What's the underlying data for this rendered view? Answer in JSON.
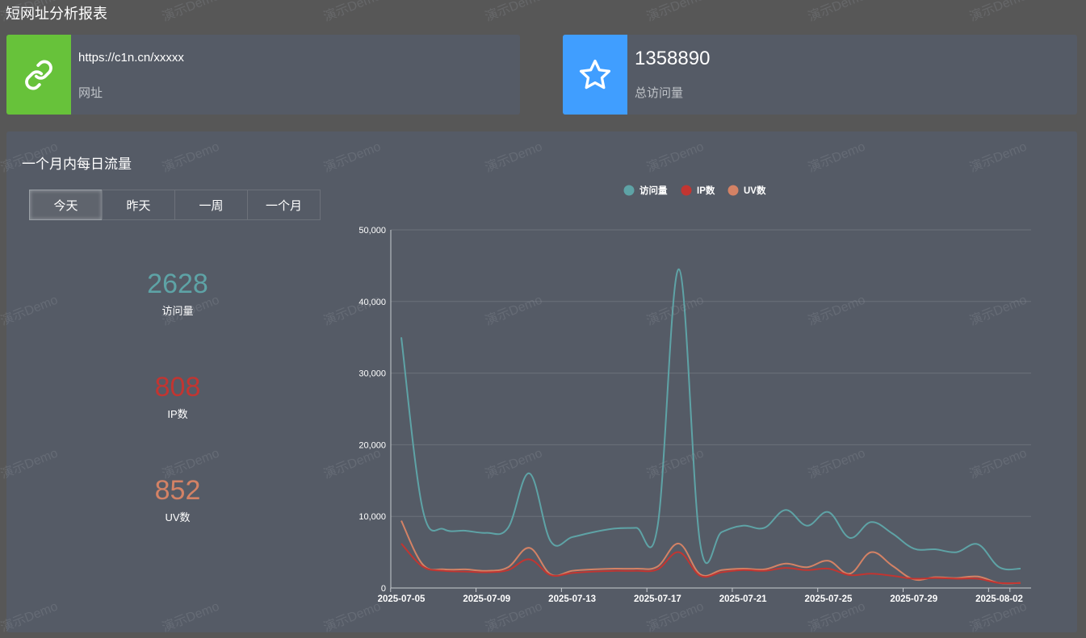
{
  "page": {
    "title": "短网址分析报表"
  },
  "cards": {
    "url": {
      "value": "https://c1n.cn/xxxxx",
      "label": "网址",
      "icon": "link-icon",
      "color": "#67c23a"
    },
    "total": {
      "value": "1358890",
      "label": "总访问量",
      "icon": "star-icon",
      "color": "#409eff"
    }
  },
  "panel": {
    "title": "一个月内每日流量",
    "tabs": [
      "今天",
      "昨天",
      "一周",
      "一个月"
    ],
    "active_tab": "今天",
    "stats": {
      "visits": {
        "value": "2628",
        "label": "访问量"
      },
      "ip": {
        "value": "808",
        "label": "IP数"
      },
      "uv": {
        "value": "852",
        "label": "UV数"
      }
    }
  },
  "watermark": "演示Demo",
  "chart_data": {
    "type": "line",
    "smooth": true,
    "legend_position": "top-center",
    "ylim": [
      0,
      50000
    ],
    "yticks": [
      0,
      10000,
      20000,
      30000,
      40000,
      50000
    ],
    "ytick_labels": [
      "0",
      "10,000",
      "20,000",
      "30,000",
      "40,000",
      "50,000"
    ],
    "x": [
      "2025-07-05",
      "2025-07-06",
      "2025-07-07",
      "2025-07-08",
      "2025-07-09",
      "2025-07-10",
      "2025-07-11",
      "2025-07-12",
      "2025-07-13",
      "2025-07-14",
      "2025-07-15",
      "2025-07-16",
      "2025-07-17",
      "2025-07-18",
      "2025-07-19",
      "2025-07-20",
      "2025-07-21",
      "2025-07-22",
      "2025-07-23",
      "2025-07-24",
      "2025-07-25",
      "2025-07-26",
      "2025-07-27",
      "2025-07-28",
      "2025-07-29",
      "2025-07-30",
      "2025-07-31",
      "2025-08-01",
      "2025-08-02",
      "2025-08-03"
    ],
    "xtick_labels": [
      "2025-07-05",
      "2025-07-09",
      "2025-07-13",
      "2025-07-17",
      "2025-07-21",
      "2025-07-25",
      "2025-07-29",
      "2025-08-02"
    ],
    "series": [
      {
        "name": "访问量",
        "color": "#5ea3a6",
        "values": [
          35000,
          11000,
          8200,
          8000,
          7700,
          8400,
          16000,
          6500,
          7100,
          7800,
          8300,
          8400,
          8600,
          44500,
          6100,
          7800,
          8700,
          8400,
          10900,
          8700,
          10600,
          7000,
          9200,
          7600,
          5500,
          5400,
          5000,
          6100,
          2900,
          2700
        ]
      },
      {
        "name": "IP数",
        "color": "#c23531",
        "values": [
          6200,
          3000,
          2400,
          2300,
          2200,
          2500,
          4000,
          1800,
          2100,
          2300,
          2400,
          2400,
          2600,
          5000,
          1700,
          2200,
          2500,
          2400,
          2800,
          2500,
          2700,
          1800,
          2000,
          1700,
          1300,
          1400,
          1300,
          1300,
          700,
          700
        ]
      },
      {
        "name": "UV数",
        "color": "#d48265",
        "values": [
          9400,
          3300,
          2600,
          2600,
          2400,
          2900,
          5600,
          1900,
          2400,
          2600,
          2700,
          2700,
          3000,
          6200,
          1900,
          2500,
          2700,
          2600,
          3400,
          2900,
          3800,
          2000,
          5000,
          3100,
          1200,
          1500,
          1400,
          1600,
          700,
          700
        ]
      }
    ]
  }
}
